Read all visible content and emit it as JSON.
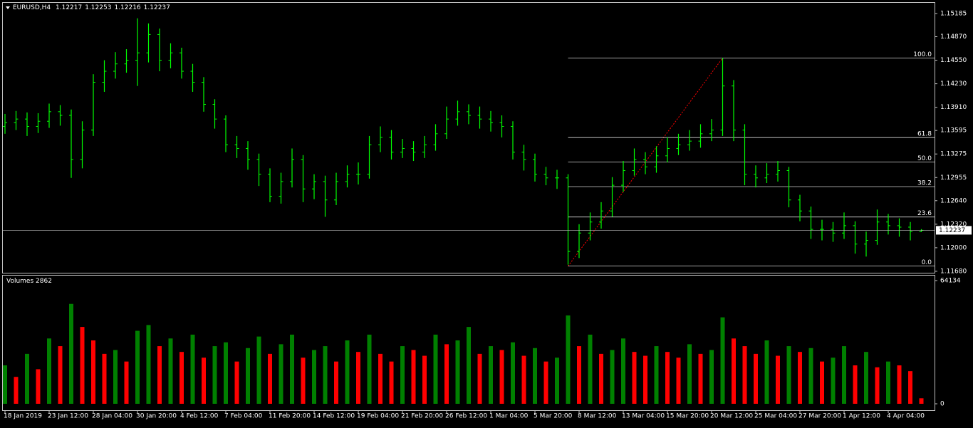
{
  "chart_data": {
    "type": "candlestick",
    "title": "EURUSD,H4",
    "header_values": [
      1.12217,
      1.12253,
      1.12216,
      1.12237
    ],
    "categories": [
      "18 Jan 2019",
      null,
      null,
      null,
      "23 Jan 12:00",
      null,
      null,
      null,
      "28 Jan 04:00",
      null,
      null,
      null,
      "30 Jan 20:00",
      null,
      null,
      null,
      "4 Feb 12:00",
      null,
      null,
      null,
      "7 Feb 04:00",
      null,
      null,
      null,
      "11 Feb 20:00",
      null,
      null,
      null,
      "14 Feb 12:00",
      null,
      null,
      null,
      "19 Feb 04:00",
      null,
      null,
      null,
      "21 Feb 20:00",
      null,
      null,
      null,
      "26 Feb 12:00",
      null,
      null,
      null,
      "1 Mar 04:00",
      null,
      null,
      null,
      "5 Mar 20:00",
      null,
      null,
      null,
      "8 Mar 12:00",
      null,
      null,
      null,
      "13 Mar 04:00",
      null,
      null,
      null,
      "15 Mar 20:00",
      null,
      null,
      null,
      "20 Mar 12:00",
      null,
      null,
      null,
      "25 Mar 04:00",
      null,
      null,
      null,
      "27 Mar 20:00",
      null,
      null,
      null,
      "1 Apr 12:00",
      null,
      null,
      null,
      "4 Apr 04:00",
      null,
      null,
      null
    ],
    "open": [
      1.1365,
      1.137,
      1.1375,
      1.1365,
      1.1372,
      1.1385,
      1.138,
      1.132,
      1.136,
      1.1425,
      1.144,
      1.145,
      1.1455,
      1.1465,
      1.149,
      1.1455,
      1.1465,
      1.144,
      1.1425,
      1.1395,
      1.1375,
      1.134,
      1.1335,
      1.132,
      1.13,
      1.127,
      1.129,
      1.132,
      1.128,
      1.129,
      1.1265,
      1.129,
      1.13,
      1.13,
      1.134,
      1.135,
      1.133,
      1.1335,
      1.133,
      1.134,
      1.1355,
      1.1375,
      1.1385,
      1.138,
      1.1375,
      1.137,
      1.1365,
      1.133,
      1.132,
      1.13,
      1.1295,
      1.1295,
      1.1195,
      1.122,
      1.1235,
      1.125,
      1.1285,
      1.1305,
      1.132,
      1.131,
      1.1325,
      1.1335,
      1.134,
      1.1345,
      1.1355,
      1.136,
      1.142,
      1.136,
      1.13,
      1.1295,
      1.13,
      1.1305,
      1.1265,
      1.125,
      1.1225,
      1.1225,
      1.122,
      1.123,
      1.1205,
      1.121,
      1.1235,
      1.123,
      1.1228,
      1.12217
    ],
    "high": [
      1.1382,
      1.1386,
      1.1384,
      1.1383,
      1.1396,
      1.1394,
      1.1388,
      1.1372,
      1.1436,
      1.1455,
      1.1466,
      1.147,
      1.1512,
      1.1505,
      1.1498,
      1.1478,
      1.1472,
      1.145,
      1.1432,
      1.1402,
      1.138,
      1.1352,
      1.1345,
      1.1328,
      1.1308,
      1.1302,
      1.1335,
      1.1326,
      1.13,
      1.1298,
      1.1302,
      1.1312,
      1.1316,
      1.1352,
      1.1365,
      1.136,
      1.1348,
      1.1345,
      1.1352,
      1.1368,
      1.1392,
      1.14,
      1.1395,
      1.1392,
      1.1386,
      1.138,
      1.1372,
      1.134,
      1.1328,
      1.131,
      1.1306,
      1.13,
      1.1232,
      1.1248,
      1.1262,
      1.1296,
      1.1318,
      1.1335,
      1.133,
      1.1338,
      1.135,
      1.1355,
      1.136,
      1.1368,
      1.1375,
      1.1458,
      1.1428,
      1.1368,
      1.1312,
      1.1315,
      1.1318,
      1.131,
      1.1272,
      1.1256,
      1.1238,
      1.1235,
      1.1248,
      1.1236,
      1.1222,
      1.1252,
      1.1246,
      1.124,
      1.1235,
      1.12253
    ],
    "low": [
      1.1355,
      1.136,
      1.1352,
      1.1356,
      1.1363,
      1.1366,
      1.1295,
      1.1308,
      1.1352,
      1.1412,
      1.143,
      1.1438,
      1.142,
      1.1452,
      1.144,
      1.1444,
      1.143,
      1.1412,
      1.1385,
      1.1362,
      1.133,
      1.1322,
      1.1306,
      1.1284,
      1.1262,
      1.126,
      1.1282,
      1.1262,
      1.1266,
      1.1242,
      1.1258,
      1.1282,
      1.1286,
      1.1294,
      1.133,
      1.132,
      1.1322,
      1.1318,
      1.1322,
      1.1332,
      1.1348,
      1.1366,
      1.1368,
      1.1362,
      1.1358,
      1.135,
      1.132,
      1.1305,
      1.129,
      1.1285,
      1.128,
      1.1177,
      1.1186,
      1.121,
      1.1226,
      1.1242,
      1.1276,
      1.1298,
      1.13,
      1.1302,
      1.1316,
      1.1326,
      1.1332,
      1.1336,
      1.1345,
      1.1352,
      1.1345,
      1.1285,
      1.1282,
      1.1288,
      1.129,
      1.1255,
      1.1236,
      1.1212,
      1.121,
      1.1208,
      1.1212,
      1.1192,
      1.1188,
      1.1204,
      1.1218,
      1.1215,
      1.121,
      1.12216
    ],
    "close": [
      1.137,
      1.1375,
      1.1365,
      1.1372,
      1.1385,
      1.138,
      1.132,
      1.136,
      1.1425,
      1.144,
      1.145,
      1.1455,
      1.1465,
      1.149,
      1.1455,
      1.1465,
      1.144,
      1.1425,
      1.1395,
      1.1375,
      1.134,
      1.1335,
      1.132,
      1.13,
      1.127,
      1.129,
      1.132,
      1.128,
      1.129,
      1.1265,
      1.129,
      1.13,
      1.13,
      1.134,
      1.135,
      1.133,
      1.1335,
      1.133,
      1.134,
      1.1355,
      1.1375,
      1.1385,
      1.138,
      1.1375,
      1.137,
      1.1365,
      1.133,
      1.132,
      1.13,
      1.1295,
      1.1295,
      1.1195,
      1.122,
      1.1235,
      1.125,
      1.1285,
      1.1305,
      1.132,
      1.131,
      1.1325,
      1.1335,
      1.134,
      1.1345,
      1.1355,
      1.136,
      1.142,
      1.136,
      1.13,
      1.1295,
      1.13,
      1.1305,
      1.1265,
      1.125,
      1.1225,
      1.1225,
      1.122,
      1.123,
      1.1205,
      1.121,
      1.1235,
      1.123,
      1.1228,
      1.1222,
      1.12237
    ],
    "color": "#00ff00",
    "ylim": [
      1.1166,
      1.1533
    ],
    "yticks": [
      1.15185,
      {
        "value": 1.1487,
        "label": "1.14870"
      },
      {
        "value": 1.1455,
        "label": "1.14550"
      },
      {
        "value": 1.1423,
        "label": "1.14230"
      },
      {
        "value": 1.1391,
        "label": "1.13910"
      },
      1.13595,
      1.13275,
      1.12955,
      {
        "value": 1.1264,
        "label": "1.12640"
      },
      {
        "value": 1.1232,
        "label": "1.12320"
      },
      {
        "value": 1.12,
        "label": "1.12000"
      },
      {
        "value": 1.1168,
        "label": "1.11680"
      }
    ],
    "last_price": 1.12237,
    "fibonacci": {
      "high": 1.1458,
      "low": 1.1175,
      "color": "#ffffff",
      "levels": [
        {
          "value": 100,
          "label": "100.0"
        },
        61.8,
        {
          "value": 50,
          "label": "50.0"
        },
        38.2,
        23.6,
        {
          "value": 0,
          "label": "0.0"
        }
      ]
    },
    "volume": {
      "title": "Volumes",
      "up_color": "#008000",
      "down_color": "#ff0000",
      "ylim": [
        0,
        64134
      ],
      "yticks": [
        64134,
        0
      ],
      "values": [
        20000,
        14000,
        26000,
        18000,
        34000,
        30000,
        52000,
        40000,
        33000,
        26000,
        28000,
        22000,
        38000,
        41000,
        30000,
        34000,
        27000,
        36000,
        24000,
        30000,
        32000,
        22000,
        29000,
        35000,
        26000,
        31000,
        36000,
        24000,
        28000,
        30000,
        22000,
        33000,
        27000,
        36000,
        26000,
        22000,
        30000,
        28000,
        25000,
        36000,
        31000,
        33000,
        40000,
        26000,
        30000,
        28000,
        32000,
        25000,
        29000,
        22000,
        24000,
        46000,
        30000,
        36000,
        26000,
        28000,
        34000,
        27000,
        25000,
        30000,
        27000,
        24000,
        31000,
        26000,
        28000,
        45000,
        34000,
        30000,
        26000,
        33000,
        25000,
        30000,
        27000,
        29000,
        22000,
        24000,
        30000,
        20000,
        27000,
        19000,
        22000,
        20000,
        17000,
        2862
      ]
    }
  }
}
